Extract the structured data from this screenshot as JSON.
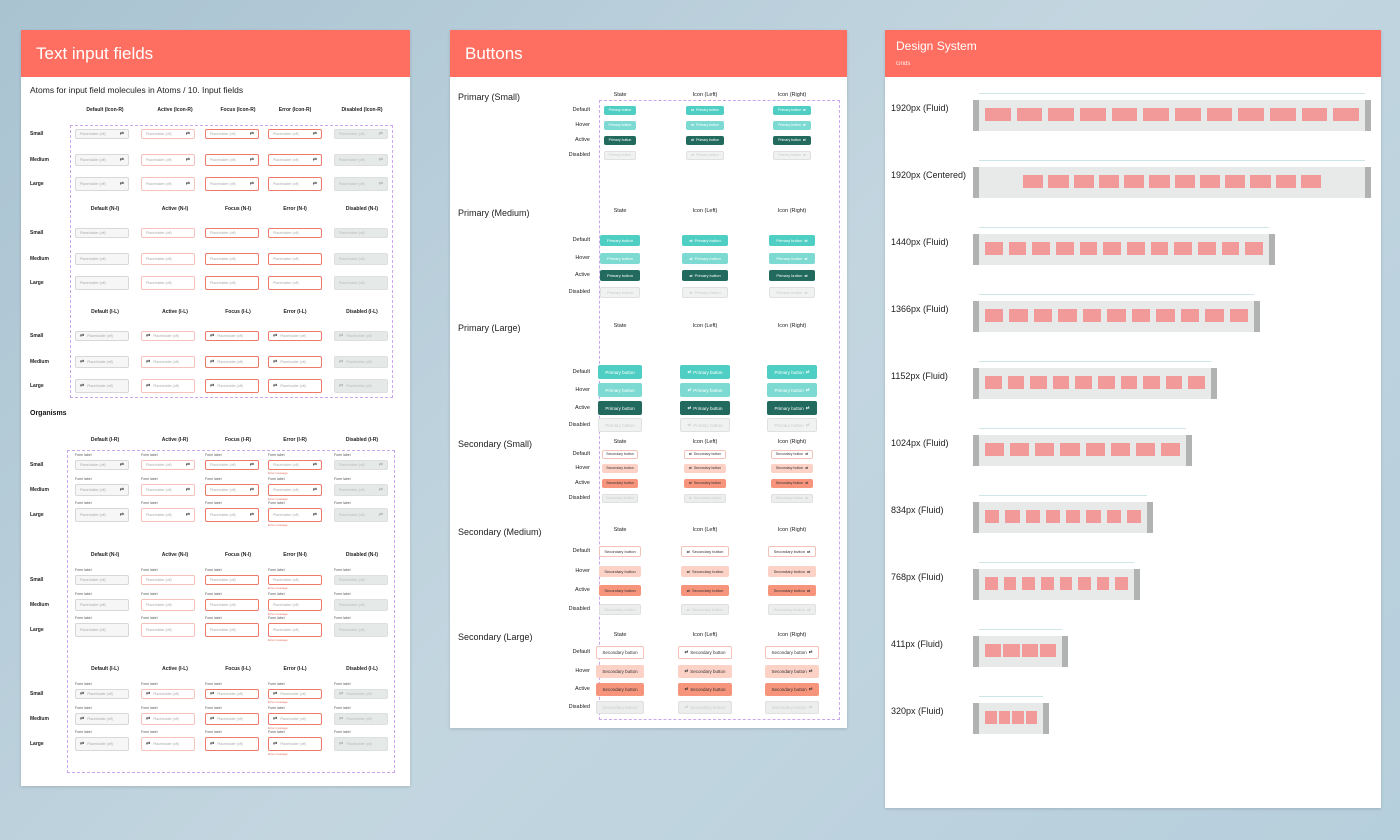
{
  "text_inputs": {
    "title": "Text input fields",
    "subtitle": "Atoms for input field molecules in Atoms / 10. Input fields",
    "organisms_label": "Organisms",
    "sizes": [
      "Small",
      "Medium",
      "Large"
    ],
    "placeholder": "Placeholder (off)",
    "form_label": "Form label",
    "error_message": "Error message",
    "icon": "refresh-icon",
    "atom_groups": [
      {
        "variant": "icon-right",
        "headers": [
          "Default (Icon-R)",
          "Active (Icon-R)",
          "Focus (Icon-R)",
          "Error (Icon-R)",
          "Disabled (Icon-R)"
        ]
      },
      {
        "variant": "no-icon",
        "headers": [
          "Default (N-I)",
          "Active (N-I)",
          "Focus (N-I)",
          "Error (N-I)",
          "Disabled (N-I)"
        ]
      },
      {
        "variant": "icon-left",
        "headers": [
          "Default (I-L)",
          "Active (I-L)",
          "Focus (I-L)",
          "Error (I-L)",
          "Disabled (I-L)"
        ]
      }
    ],
    "organism_groups": [
      {
        "variant": "icon-right",
        "headers": [
          "Default (I-R)",
          "Active (I-R)",
          "Focus (I-R)",
          "Error (I-R)",
          "Disabled (I-R)"
        ]
      },
      {
        "variant": "no-icon",
        "headers": [
          "Default (N-I)",
          "Active (N-I)",
          "Focus (N-I)",
          "Error (N-I)",
          "Disabled (N-I)"
        ]
      },
      {
        "variant": "icon-left",
        "headers": [
          "Default (I-L)",
          "Active (I-L)",
          "Focus (I-L)",
          "Error (I-L)",
          "Disabled (I-L)"
        ]
      }
    ]
  },
  "buttons": {
    "title": "Buttons",
    "column_headers": [
      "State",
      "Icon (Left)",
      "Icon (Right)"
    ],
    "states": [
      "Default",
      "Hover",
      "Active",
      "Disabled"
    ],
    "sections": [
      {
        "name": "Primary (Small)",
        "label": "Primary button",
        "kind": "primary"
      },
      {
        "name": "Primary (Medium)",
        "label": "Primary button",
        "kind": "primary"
      },
      {
        "name": "Primary (Large)",
        "label": "Primary button",
        "kind": "primary"
      },
      {
        "name": "Secondary (Small)",
        "label": "Secondary button",
        "kind": "secondary"
      },
      {
        "name": "Secondary (Medium)",
        "label": "Secondary button",
        "kind": "secondary"
      },
      {
        "name": "Secondary (Large)",
        "label": "Secondary button",
        "kind": "secondary"
      }
    ],
    "colors": {
      "primary": "#4fcfc3",
      "primary_active": "#22695e",
      "secondary_hover": "#fcd2c6",
      "secondary_active": "#f7957c"
    }
  },
  "design_system": {
    "title": "Design System",
    "subtitle": "Grids",
    "grids": [
      {
        "label": "1920px (Fluid)",
        "columns": 12
      },
      {
        "label": "1920px (Centered)",
        "columns": 12
      },
      {
        "label": "1440px (Fluid)",
        "columns": 12
      },
      {
        "label": "1366px (Fluid)",
        "columns": 11
      },
      {
        "label": "1152px (Fluid)",
        "columns": 10
      },
      {
        "label": "1024px (Fluid)",
        "columns": 8
      },
      {
        "label": "834px (Fluid)",
        "columns": 8
      },
      {
        "label": "768px (Fluid)",
        "columns": 8
      },
      {
        "label": "411px (Fluid)",
        "columns": 4
      },
      {
        "label": "320px (Fluid)",
        "columns": 4
      }
    ]
  },
  "colors": {
    "header": "#FF6F61",
    "column": "#f2999a"
  }
}
